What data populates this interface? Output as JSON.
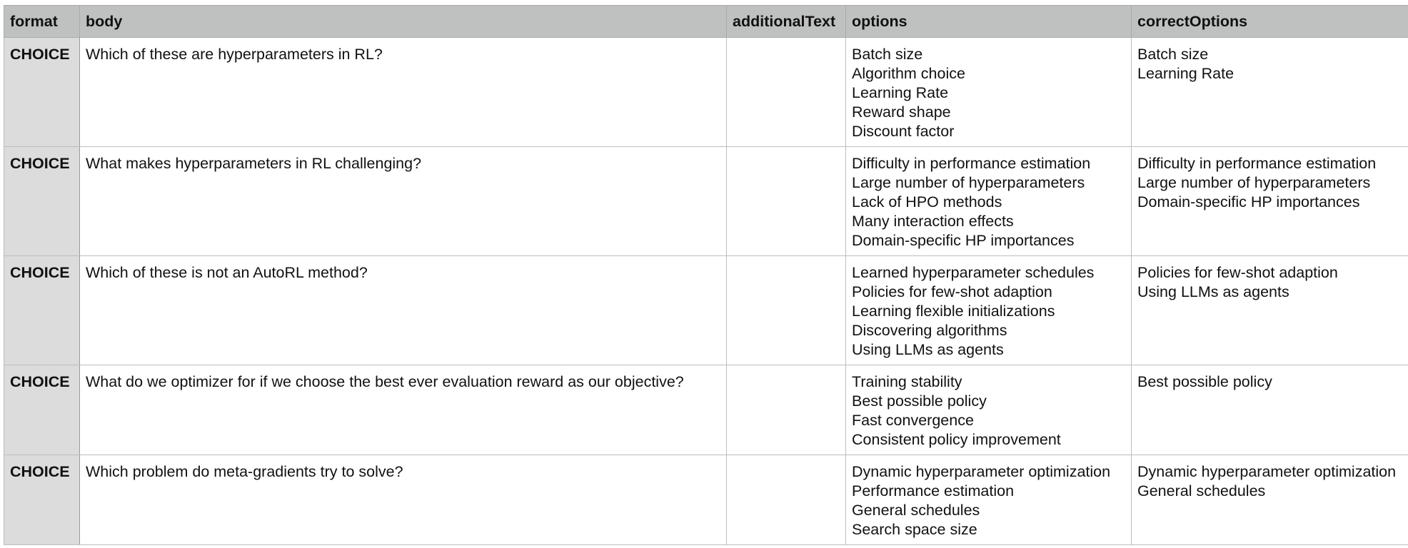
{
  "columns": [
    "format",
    "body",
    "additionalText",
    "options",
    "correctOptions"
  ],
  "rows": [
    {
      "format": "CHOICE",
      "body": "Which of these are hyperparameters in RL?",
      "additionalText": "",
      "options": [
        "Batch size",
        "Algorithm choice",
        "Learning Rate",
        "Reward shape",
        "Discount factor"
      ],
      "correctOptions": [
        "Batch size",
        "Learning Rate"
      ]
    },
    {
      "format": "CHOICE",
      "body": "What makes hyperparameters in RL challenging?",
      "additionalText": "",
      "options": [
        "Difficulty in performance estimation",
        "Large number of hyperparameters",
        "Lack of HPO methods",
        "Many interaction effects",
        "Domain-specific HP importances"
      ],
      "correctOptions": [
        "Difficulty in performance estimation",
        "Large number of hyperparameters",
        "Domain-specific HP importances"
      ]
    },
    {
      "format": "CHOICE",
      "body": "Which of these is not an AutoRL method?",
      "additionalText": "",
      "options": [
        "Learned hyperparameter schedules",
        "Policies for few-shot adaption",
        "Learning flexible initializations",
        "Discovering algorithms",
        "Using LLMs as agents"
      ],
      "correctOptions": [
        "Policies for few-shot adaption",
        "Using LLMs as agents"
      ]
    },
    {
      "format": "CHOICE",
      "body": "What do we optimizer for if we choose the best ever evaluation reward as our objective?",
      "additionalText": "",
      "options": [
        "Training stability",
        "Best possible policy",
        "Fast convergence",
        "Consistent policy improvement"
      ],
      "correctOptions": [
        "Best possible policy"
      ]
    },
    {
      "format": "CHOICE",
      "body": "Which problem do meta-gradients try to solve?",
      "additionalText": "",
      "options": [
        "Dynamic hyperparameter optimization",
        "Performance estimation",
        "General schedules",
        "Search space size"
      ],
      "correctOptions": [
        "Dynamic hyperparameter optimization",
        "General schedules"
      ]
    }
  ]
}
